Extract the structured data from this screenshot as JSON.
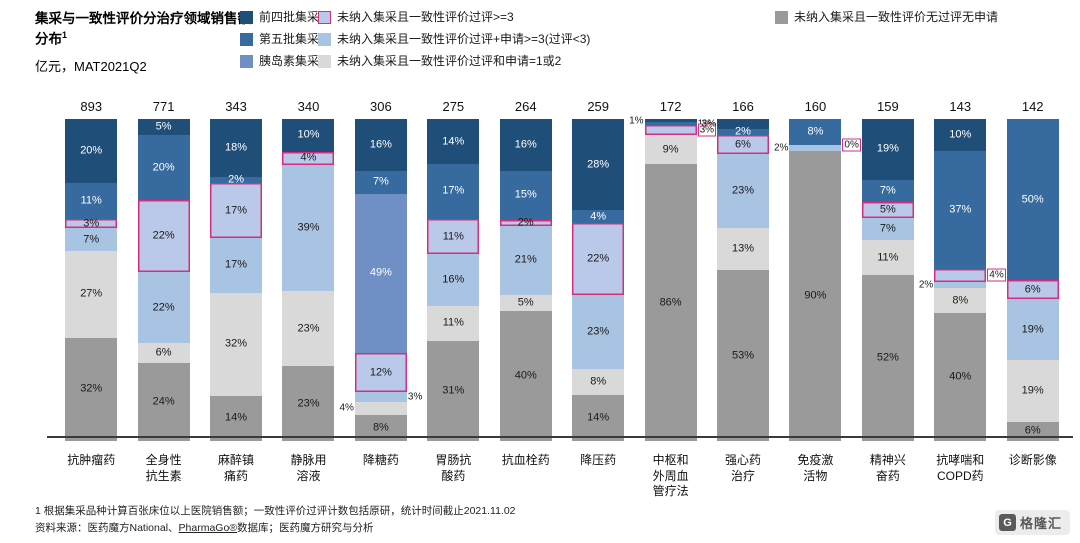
{
  "header": {
    "title": "集采与一致性评价分治疗领域销售额分布",
    "title_sup": "1",
    "subtitle": "亿元，MAT2021Q2"
  },
  "legend": {
    "columns": [
      [
        "q4",
        "q5",
        "insulin"
      ],
      [
        "pe3",
        "pa3",
        "pa12"
      ],
      [
        "none"
      ]
    ],
    "column_offsets": [
      0,
      78,
      535
    ]
  },
  "chart_data": {
    "type": "bar",
    "variant": "100%-stacked-vertical",
    "unit": "亿元",
    "period": "MAT2021Q2",
    "legend_position": "top",
    "y_axis": {
      "range_percent": [
        0,
        100
      ],
      "gridlines": false,
      "axis_labels_hidden": true
    },
    "series": [
      {
        "key": "q4",
        "label": "前四批集采",
        "color": "#1f4e79",
        "text_color": "#ffffff"
      },
      {
        "key": "q5",
        "label": "第五批集采",
        "color": "#376a9f",
        "text_color": "#ffffff"
      },
      {
        "key": "insulin",
        "label": "胰岛素集采",
        "color": "#7090c5",
        "text_color": "#ffffff"
      },
      {
        "key": "pe3",
        "label": "未纳入集采且一致性评价过评>=3",
        "color": "#bac9e9",
        "border_color": "#d62e7d",
        "text_color": "#1a1a1a"
      },
      {
        "key": "pa3",
        "label": "未纳入集采且一致性评价过评+申请>=3(过评<3)",
        "color": "#a9c3e3",
        "text_color": "#1a1a1a"
      },
      {
        "key": "pa12",
        "label": "未纳入集采且一致性评价过评和申请=1或2",
        "color": "#d9d9d9",
        "text_color": "#1a1a1a"
      },
      {
        "key": "none",
        "label": "未纳入集采且一致性评价无过评无申请",
        "color": "#9a9a9a",
        "text_color": "#1a1a1a"
      }
    ],
    "bars": [
      {
        "category": "抗肿瘤药",
        "total": 893,
        "segments": [
          {
            "k": "q4",
            "v": 20,
            "label": "20%",
            "pos": "in"
          },
          {
            "k": "q5",
            "v": 11,
            "label": "11%",
            "pos": "in"
          },
          {
            "k": "pe3",
            "v": 3,
            "label": "3%",
            "pos": "in"
          },
          {
            "k": "pa3",
            "v": 7,
            "label": "7%",
            "pos": "in"
          },
          {
            "k": "pa12",
            "v": 27,
            "label": "27%",
            "pos": "in"
          },
          {
            "k": "none",
            "v": 32,
            "label": "32%",
            "pos": "in"
          }
        ]
      },
      {
        "category": "全身性\n抗生素",
        "total": 771,
        "segments": [
          {
            "k": "q4",
            "v": 5,
            "label": "5%",
            "pos": "in"
          },
          {
            "k": "q5",
            "v": 20,
            "label": "20%",
            "pos": "in"
          },
          {
            "k": "pe3",
            "v": 22,
            "label": "22%",
            "pos": "in"
          },
          {
            "k": "pa3",
            "v": 22,
            "label": "22%",
            "pos": "in"
          },
          {
            "k": "pa12",
            "v": 6,
            "label": "6%",
            "pos": "in"
          },
          {
            "k": "none",
            "v": 24,
            "label": "24%",
            "pos": "in"
          }
        ]
      },
      {
        "category": "麻醉镇\n痛药",
        "total": 343,
        "segments": [
          {
            "k": "q4",
            "v": 18,
            "label": "18%",
            "pos": "in"
          },
          {
            "k": "q5",
            "v": 2,
            "label": "2%",
            "pos": "in"
          },
          {
            "k": "pe3",
            "v": 17,
            "label": "17%",
            "pos": "in"
          },
          {
            "k": "pa3",
            "v": 17,
            "label": "17%",
            "pos": "in"
          },
          {
            "k": "pa12",
            "v": 32,
            "label": "32%",
            "pos": "in"
          },
          {
            "k": "none",
            "v": 14,
            "label": "14%",
            "pos": "in"
          }
        ]
      },
      {
        "category": "静脉用\n溶液",
        "total": 340,
        "segments": [
          {
            "k": "q4",
            "v": 10,
            "label": "10%",
            "pos": "in"
          },
          {
            "k": "pe3",
            "v": 4,
            "label": "4%",
            "pos": "in"
          },
          {
            "k": "pa3",
            "v": 39,
            "label": "39%",
            "pos": "in"
          },
          {
            "k": "pa12",
            "v": 23,
            "label": "23%",
            "pos": "in"
          },
          {
            "k": "none",
            "v": 23,
            "label": "23%",
            "pos": "in"
          }
        ]
      },
      {
        "category": "降糖药",
        "total": 306,
        "segments": [
          {
            "k": "q4",
            "v": 16,
            "label": "16%",
            "pos": "in"
          },
          {
            "k": "q5",
            "v": 7,
            "label": "7%",
            "pos": "in"
          },
          {
            "k": "insulin",
            "v": 49,
            "label": "49%",
            "pos": "in"
          },
          {
            "k": "pe3",
            "v": 12,
            "label": "12%",
            "pos": "in"
          },
          {
            "k": "pa3",
            "v": 3,
            "label": "3%",
            "pos": "right"
          },
          {
            "k": "pa12",
            "v": 4,
            "label": "4%",
            "pos": "left"
          },
          {
            "k": "none",
            "v": 8,
            "label": "8%",
            "pos": "in"
          }
        ]
      },
      {
        "category": "胃肠抗\n酸药",
        "total": 275,
        "segments": [
          {
            "k": "q4",
            "v": 14,
            "label": "14%",
            "pos": "in"
          },
          {
            "k": "q5",
            "v": 17,
            "label": "17%",
            "pos": "in"
          },
          {
            "k": "pe3",
            "v": 11,
            "label": "11%",
            "pos": "in"
          },
          {
            "k": "pa3",
            "v": 16,
            "label": "16%",
            "pos": "in"
          },
          {
            "k": "pa12",
            "v": 11,
            "label": "11%",
            "pos": "in"
          },
          {
            "k": "none",
            "v": 31,
            "label": "31%",
            "pos": "in"
          }
        ]
      },
      {
        "category": "抗血栓药",
        "total": 264,
        "segments": [
          {
            "k": "q4",
            "v": 16,
            "label": "16%",
            "pos": "in"
          },
          {
            "k": "q5",
            "v": 15,
            "label": "15%",
            "pos": "in"
          },
          {
            "k": "pe3",
            "v": 2,
            "label": "2%",
            "pos": "in"
          },
          {
            "k": "pa3",
            "v": 21,
            "label": "21%",
            "pos": "in"
          },
          {
            "k": "pa12",
            "v": 5,
            "label": "5%",
            "pos": "in"
          },
          {
            "k": "none",
            "v": 40,
            "label": "40%",
            "pos": "in"
          }
        ]
      },
      {
        "category": "降压药",
        "total": 259,
        "segments": [
          {
            "k": "q4",
            "v": 28,
            "label": "28%",
            "pos": "in"
          },
          {
            "k": "q5",
            "v": 4,
            "label": "4%",
            "pos": "in"
          },
          {
            "k": "pe3",
            "v": 22,
            "label": "22%",
            "pos": "in"
          },
          {
            "k": "pa3",
            "v": 23,
            "label": "23%",
            "pos": "in"
          },
          {
            "k": "pa12",
            "v": 8,
            "label": "8%",
            "pos": "in"
          },
          {
            "k": "none",
            "v": 14,
            "label": "14%",
            "pos": "in"
          }
        ]
      },
      {
        "category": "中枢和\n外周血\n管疗法",
        "total": 172,
        "segments": [
          {
            "k": "q4",
            "v": 1,
            "label": "1%",
            "pos": "left"
          },
          {
            "k": "q5",
            "v": 1,
            "label": "1%",
            "pos": "right"
          },
          {
            "k": "pe3",
            "v": 3,
            "label": "3%",
            "pos": "right"
          },
          {
            "k": "pa12",
            "v": 9,
            "label": "9%",
            "pos": "in"
          },
          {
            "k": "none",
            "v": 86,
            "label": "86%",
            "pos": "in"
          }
        ]
      },
      {
        "category": "强心药\n治疗",
        "total": 166,
        "segments": [
          {
            "k": "q4",
            "v": 3,
            "label": "3%",
            "pos": "left"
          },
          {
            "k": "q5",
            "v": 2,
            "label": "2%",
            "pos": "in"
          },
          {
            "k": "pe3",
            "v": 6,
            "label": "6%",
            "pos": "in"
          },
          {
            "k": "pa3",
            "v": 23,
            "label": "23%",
            "pos": "in"
          },
          {
            "k": "pa12",
            "v": 13,
            "label": "13%",
            "pos": "in"
          },
          {
            "k": "none",
            "v": 53,
            "label": "53%",
            "pos": "in"
          }
        ]
      },
      {
        "category": "免疫激\n活物",
        "total": 160,
        "segments": [
          {
            "k": "q5",
            "v": 8,
            "label": "8%",
            "pos": "in"
          },
          {
            "k": "pe3",
            "v": 0,
            "label": "0%",
            "pos": "right"
          },
          {
            "k": "pa3",
            "v": 2,
            "label": "2%",
            "pos": "left"
          },
          {
            "k": "none",
            "v": 90,
            "label": "90%",
            "pos": "in"
          }
        ]
      },
      {
        "category": "精神兴\n奋药",
        "total": 159,
        "segments": [
          {
            "k": "q4",
            "v": 19,
            "label": "19%",
            "pos": "in"
          },
          {
            "k": "q5",
            "v": 7,
            "label": "7%",
            "pos": "in"
          },
          {
            "k": "pe3",
            "v": 5,
            "label": "5%",
            "pos": "in"
          },
          {
            "k": "pa3",
            "v": 7,
            "label": "7%",
            "pos": "in"
          },
          {
            "k": "pa12",
            "v": 11,
            "label": "11%",
            "pos": "in"
          },
          {
            "k": "none",
            "v": 52,
            "label": "52%",
            "pos": "in"
          }
        ]
      },
      {
        "category": "抗哮喘和\nCOPD药",
        "total": 143,
        "segments": [
          {
            "k": "q4",
            "v": 10,
            "label": "10%",
            "pos": "in"
          },
          {
            "k": "q5",
            "v": 37,
            "label": "37%",
            "pos": "in"
          },
          {
            "k": "pe3",
            "v": 4,
            "label": "4%",
            "pos": "right"
          },
          {
            "k": "pa3",
            "v": 2,
            "label": "2%",
            "pos": "left"
          },
          {
            "k": "pa12",
            "v": 8,
            "label": "8%",
            "pos": "in"
          },
          {
            "k": "none",
            "v": 40,
            "label": "40%",
            "pos": "in"
          }
        ]
      },
      {
        "category": "诊断影像",
        "total": 142,
        "segments": [
          {
            "k": "q5",
            "v": 50,
            "label": "50%",
            "pos": "in"
          },
          {
            "k": "pe3",
            "v": 6,
            "label": "6%",
            "pos": "in"
          },
          {
            "k": "pa3",
            "v": 19,
            "label": "19%",
            "pos": "in"
          },
          {
            "k": "pa12",
            "v": 19,
            "label": "19%",
            "pos": "in"
          },
          {
            "k": "none",
            "v": 6,
            "label": "6%",
            "pos": "in"
          }
        ]
      }
    ]
  },
  "footnotes": {
    "note1": "1 根据集采品种计算百张床位以上医院销售额；一致性评价过评计数包括原研，统计时间截止2021.11.02",
    "source_pre": "资料来源：医药魔方National、",
    "source_link": "PharmaGo®",
    "source_post": "数据库；医药魔方研究与分析"
  },
  "logo": {
    "mark": "G",
    "text": "格隆汇"
  }
}
